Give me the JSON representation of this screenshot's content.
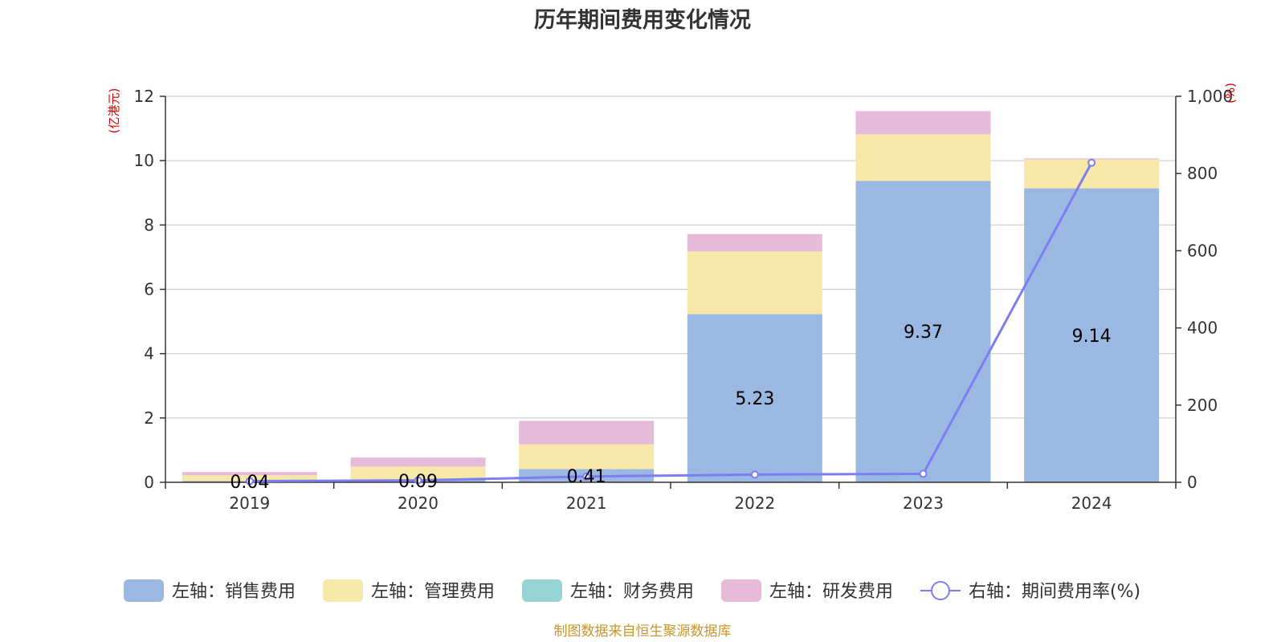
{
  "chart_data": {
    "type": "bar",
    "stacked": true,
    "title": "历年期间费用变化情况",
    "left_axis_unit": "(亿港元)",
    "right_axis_unit": "(%)",
    "categories": [
      "2019",
      "2020",
      "2021",
      "2022",
      "2023",
      "2024"
    ],
    "left_ylim": [
      0,
      12
    ],
    "left_ticks": [
      "0",
      "2",
      "4",
      "6",
      "8",
      "10",
      "12"
    ],
    "right_ylim": [
      0,
      1000
    ],
    "right_ticks": [
      "0",
      "200",
      "400",
      "600",
      "800",
      "1,000"
    ],
    "series": [
      {
        "name": "左轴：销售费用",
        "axis": "left",
        "color": "#9bb8e2",
        "values": [
          0.04,
          0.09,
          0.41,
          5.23,
          9.37,
          9.14
        ],
        "labels": [
          "0.04",
          "0.09",
          "0.41",
          "5.23",
          "9.37",
          "9.14"
        ]
      },
      {
        "name": "左轴：管理费用",
        "axis": "left",
        "color": "#f7e7a8",
        "values": [
          0.18,
          0.4,
          0.77,
          1.95,
          1.45,
          0.9
        ]
      },
      {
        "name": "左轴：财务费用",
        "axis": "left",
        "color": "#98d4d4",
        "values": [
          0.0,
          0.0,
          0.0,
          0.0,
          0.0,
          0.0
        ]
      },
      {
        "name": "左轴：研发费用",
        "axis": "left",
        "color": "#e6bbd9",
        "values": [
          0.1,
          0.28,
          0.73,
          0.54,
          0.72,
          0.03
        ]
      },
      {
        "name": "右轴：期间费用率(%)",
        "axis": "right",
        "type": "line",
        "color": "#7b7ef0",
        "values": [
          3,
          5,
          15,
          20,
          22,
          828
        ]
      }
    ],
    "source": "制图数据来自恒生聚源数据库",
    "source_color": "#c8962c"
  }
}
